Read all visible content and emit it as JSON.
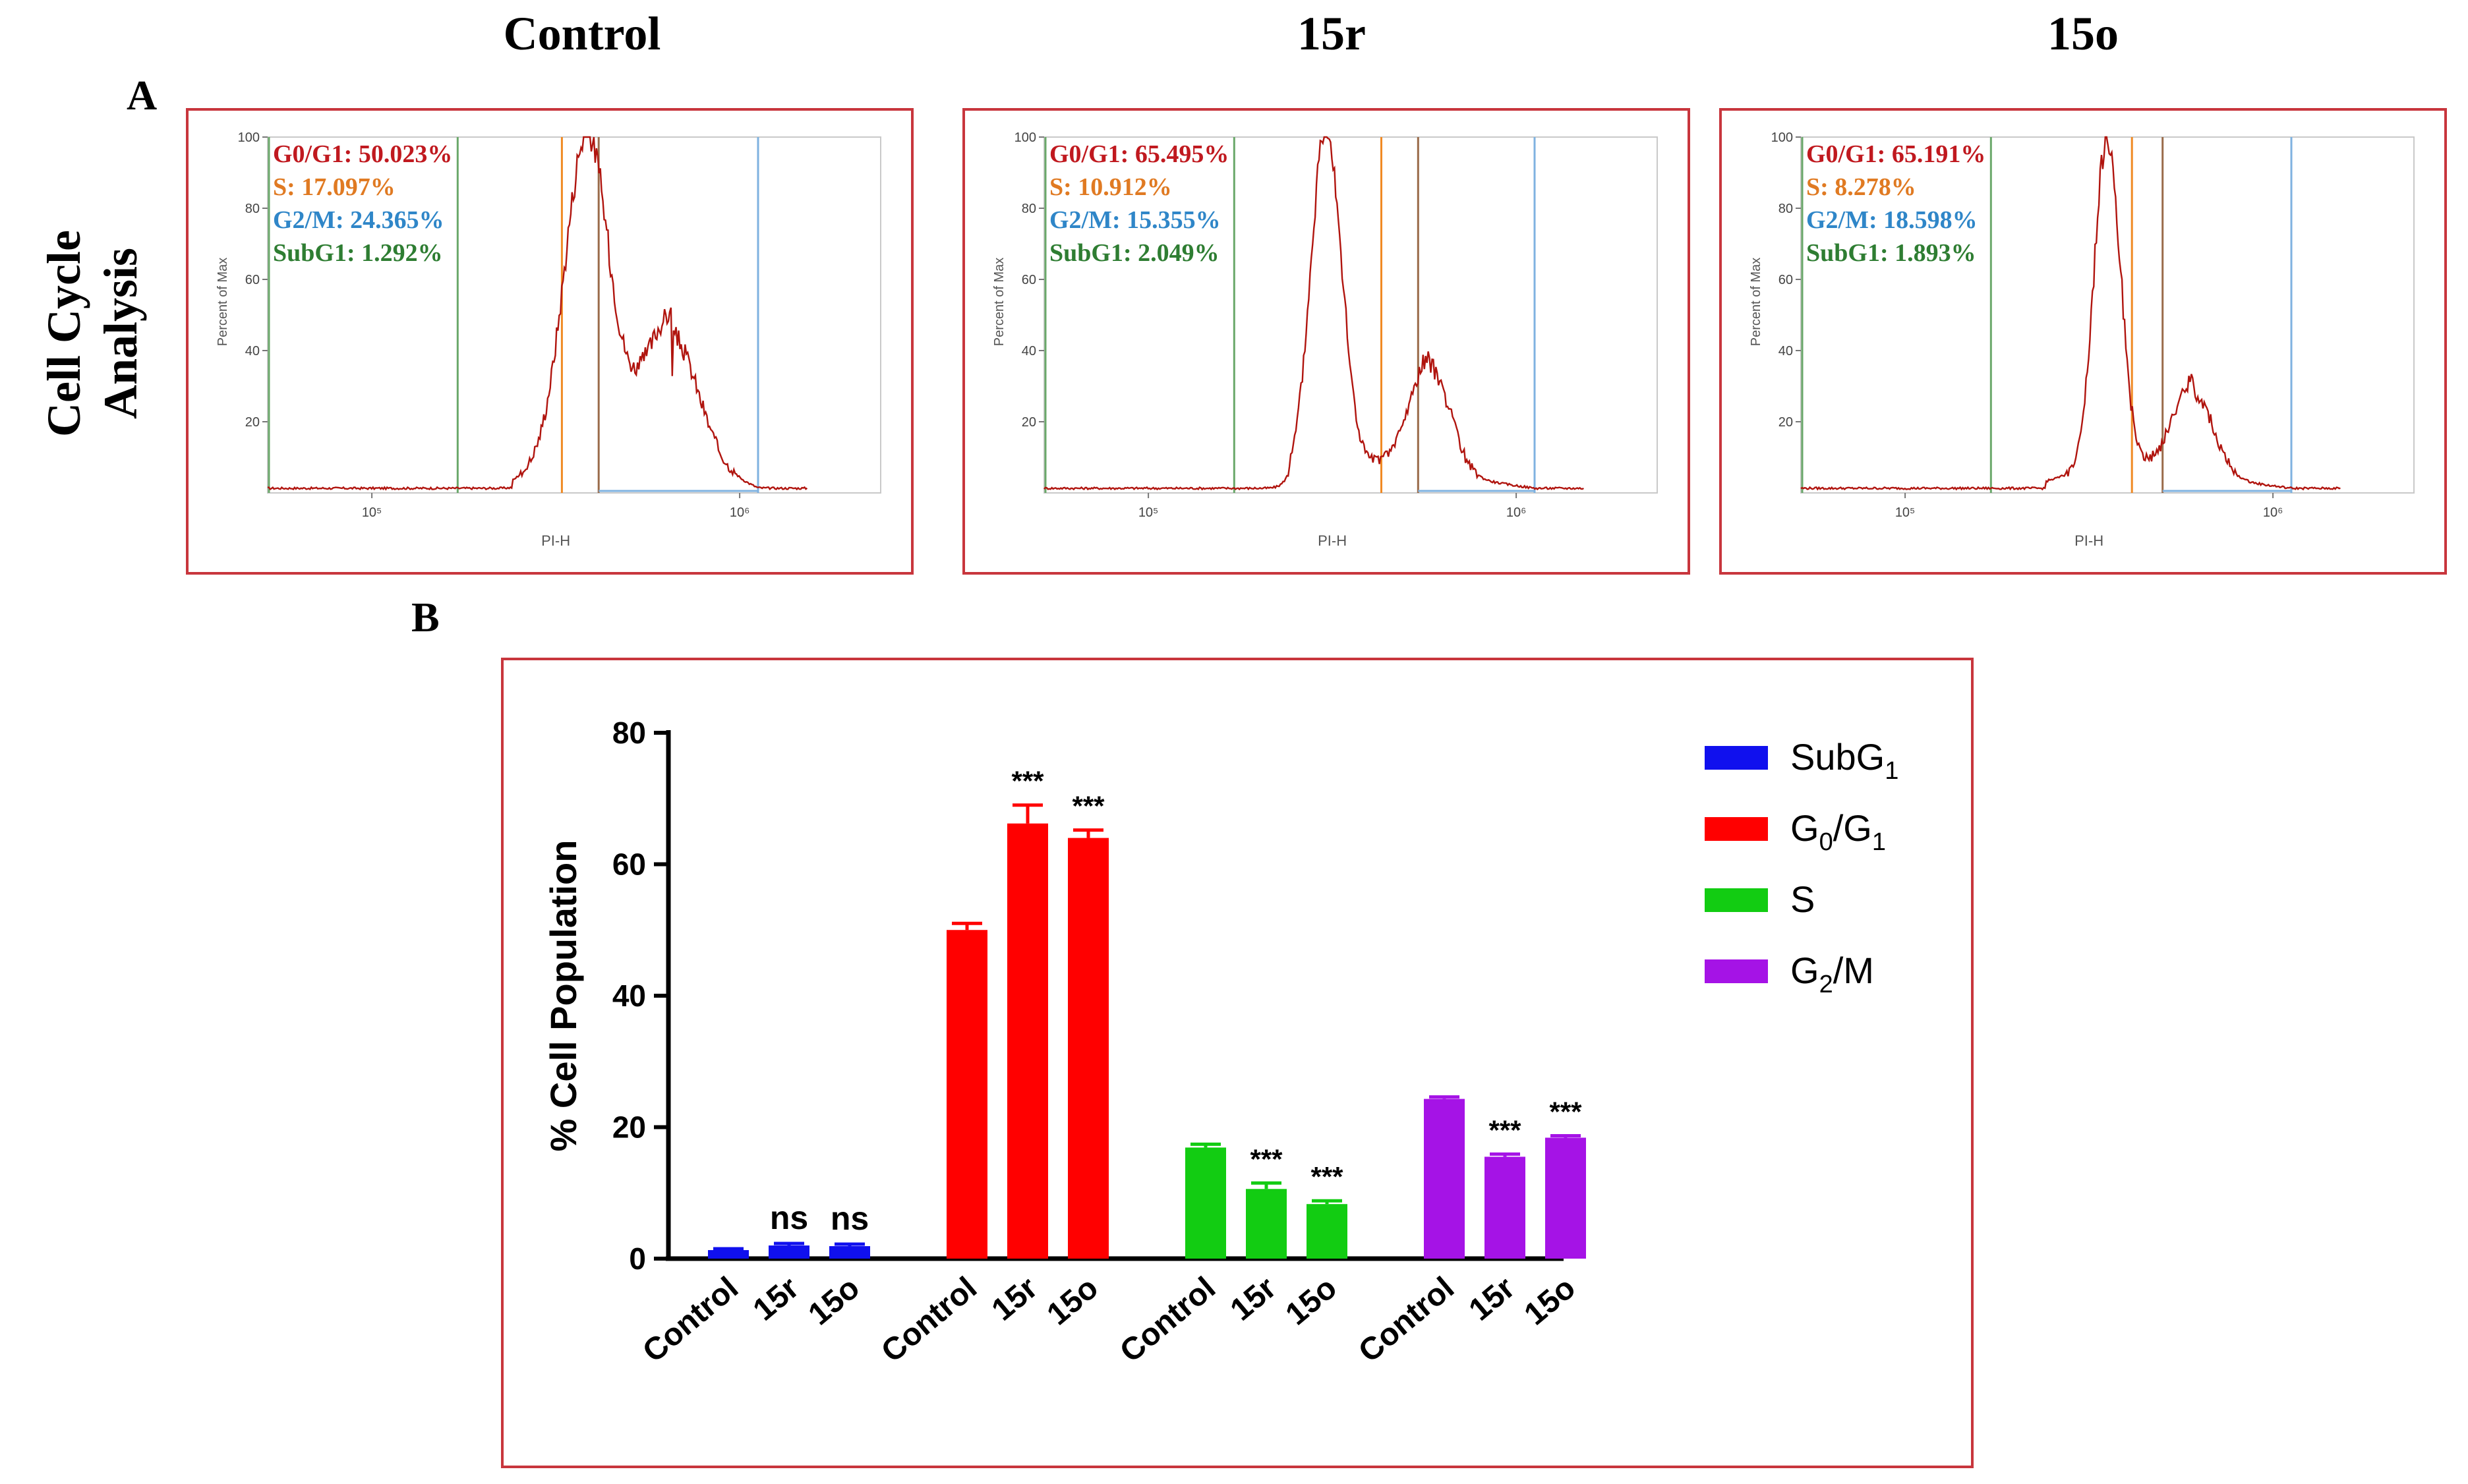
{
  "figure": {
    "column_titles": [
      "Control",
      "15r",
      "15o"
    ],
    "panel_a_label": "A",
    "panel_b_label": "B",
    "row_title_line1": "Cell Cycle",
    "row_title_line2": "Analysis"
  },
  "histograms": [
    {
      "name": "Control",
      "stats": {
        "g0g1": "G0/G1: 50.023%",
        "s": "S: 17.097%",
        "g2m": "G2/M: 24.365%",
        "subg1": "SubG1: 1.292%"
      },
      "y_label": "Percent of Max",
      "x_label": "PI-H",
      "y_ticks": [
        "100",
        "80",
        "60",
        "40",
        "20"
      ],
      "x_ticks": [
        "10⁵",
        "10⁶"
      ]
    },
    {
      "name": "15r",
      "stats": {
        "g0g1": "G0/G1: 65.495%",
        "s": "S: 10.912%",
        "g2m": "G2/M: 15.355%",
        "subg1": "SubG1: 2.049%"
      },
      "y_label": "Percent of Max",
      "x_label": "PI-H",
      "y_ticks": [
        "100",
        "80",
        "60",
        "40",
        "20"
      ],
      "x_ticks": [
        "10⁵",
        "10⁶"
      ]
    },
    {
      "name": "15o",
      "stats": {
        "g0g1": "G0/G1: 65.191%",
        "s": "S: 8.278%",
        "g2m": "G2/M: 18.598%",
        "subg1": "SubG1: 1.893%"
      },
      "y_label": "Percent of Max",
      "x_label": "PI-H",
      "y_ticks": [
        "100",
        "80",
        "60",
        "40",
        "20"
      ],
      "x_ticks": [
        "10⁵",
        "10⁶"
      ]
    }
  ],
  "colors": {
    "frame": "#c8363d",
    "histogram_line": "#b0140e",
    "g0g1_text": "#c0191f",
    "s_text": "#e07a22",
    "g2m_text": "#2f86c8",
    "subg1_text": "#2e7d32",
    "gate_green": "#6aa86a",
    "gate_orange": "#f08a24",
    "gate_brown": "#9a6b4a",
    "gate_blue": "#7fb2e0",
    "subg1_bar": "#1010ee",
    "g0g1_bar": "#ff0000",
    "s_bar": "#12cc12",
    "g2m_bar": "#a513e6"
  },
  "chart_data": {
    "type": "bar",
    "ylabel": "% Cell Population",
    "ylim": [
      0,
      80
    ],
    "y_ticks": [
      "0",
      "20",
      "40",
      "60",
      "80"
    ],
    "groups": [
      "SubG1",
      "G0/G1",
      "S",
      "G2/M"
    ],
    "categories": [
      "Control",
      "15r",
      "15o"
    ],
    "series": [
      {
        "name": "SubG1",
        "legend_base": "SubG",
        "legend_sub": "1",
        "values": [
          1.3,
          2.0,
          1.9
        ],
        "errors": [
          0.2,
          0.3,
          0.3
        ],
        "significance": [
          "",
          "ns",
          "ns"
        ]
      },
      {
        "name": "G0/G1",
        "legend_base": "G",
        "legend_sub": "0",
        "legend_mid": "/G",
        "legend_sub2": "1",
        "values": [
          50.0,
          66.2,
          64.0
        ],
        "errors": [
          1.0,
          2.8,
          1.2
        ],
        "significance": [
          "",
          "***",
          "***"
        ]
      },
      {
        "name": "S",
        "legend_base": "S",
        "values": [
          16.9,
          10.6,
          8.3
        ],
        "errors": [
          0.5,
          0.9,
          0.5
        ],
        "significance": [
          "",
          "***",
          "***"
        ]
      },
      {
        "name": "G2/M",
        "legend_base": "G",
        "legend_sub": "2",
        "legend_mid": "/M",
        "values": [
          24.3,
          15.5,
          18.4
        ],
        "errors": [
          0.3,
          0.4,
          0.3
        ],
        "significance": [
          "",
          "***",
          "***"
        ]
      }
    ]
  }
}
